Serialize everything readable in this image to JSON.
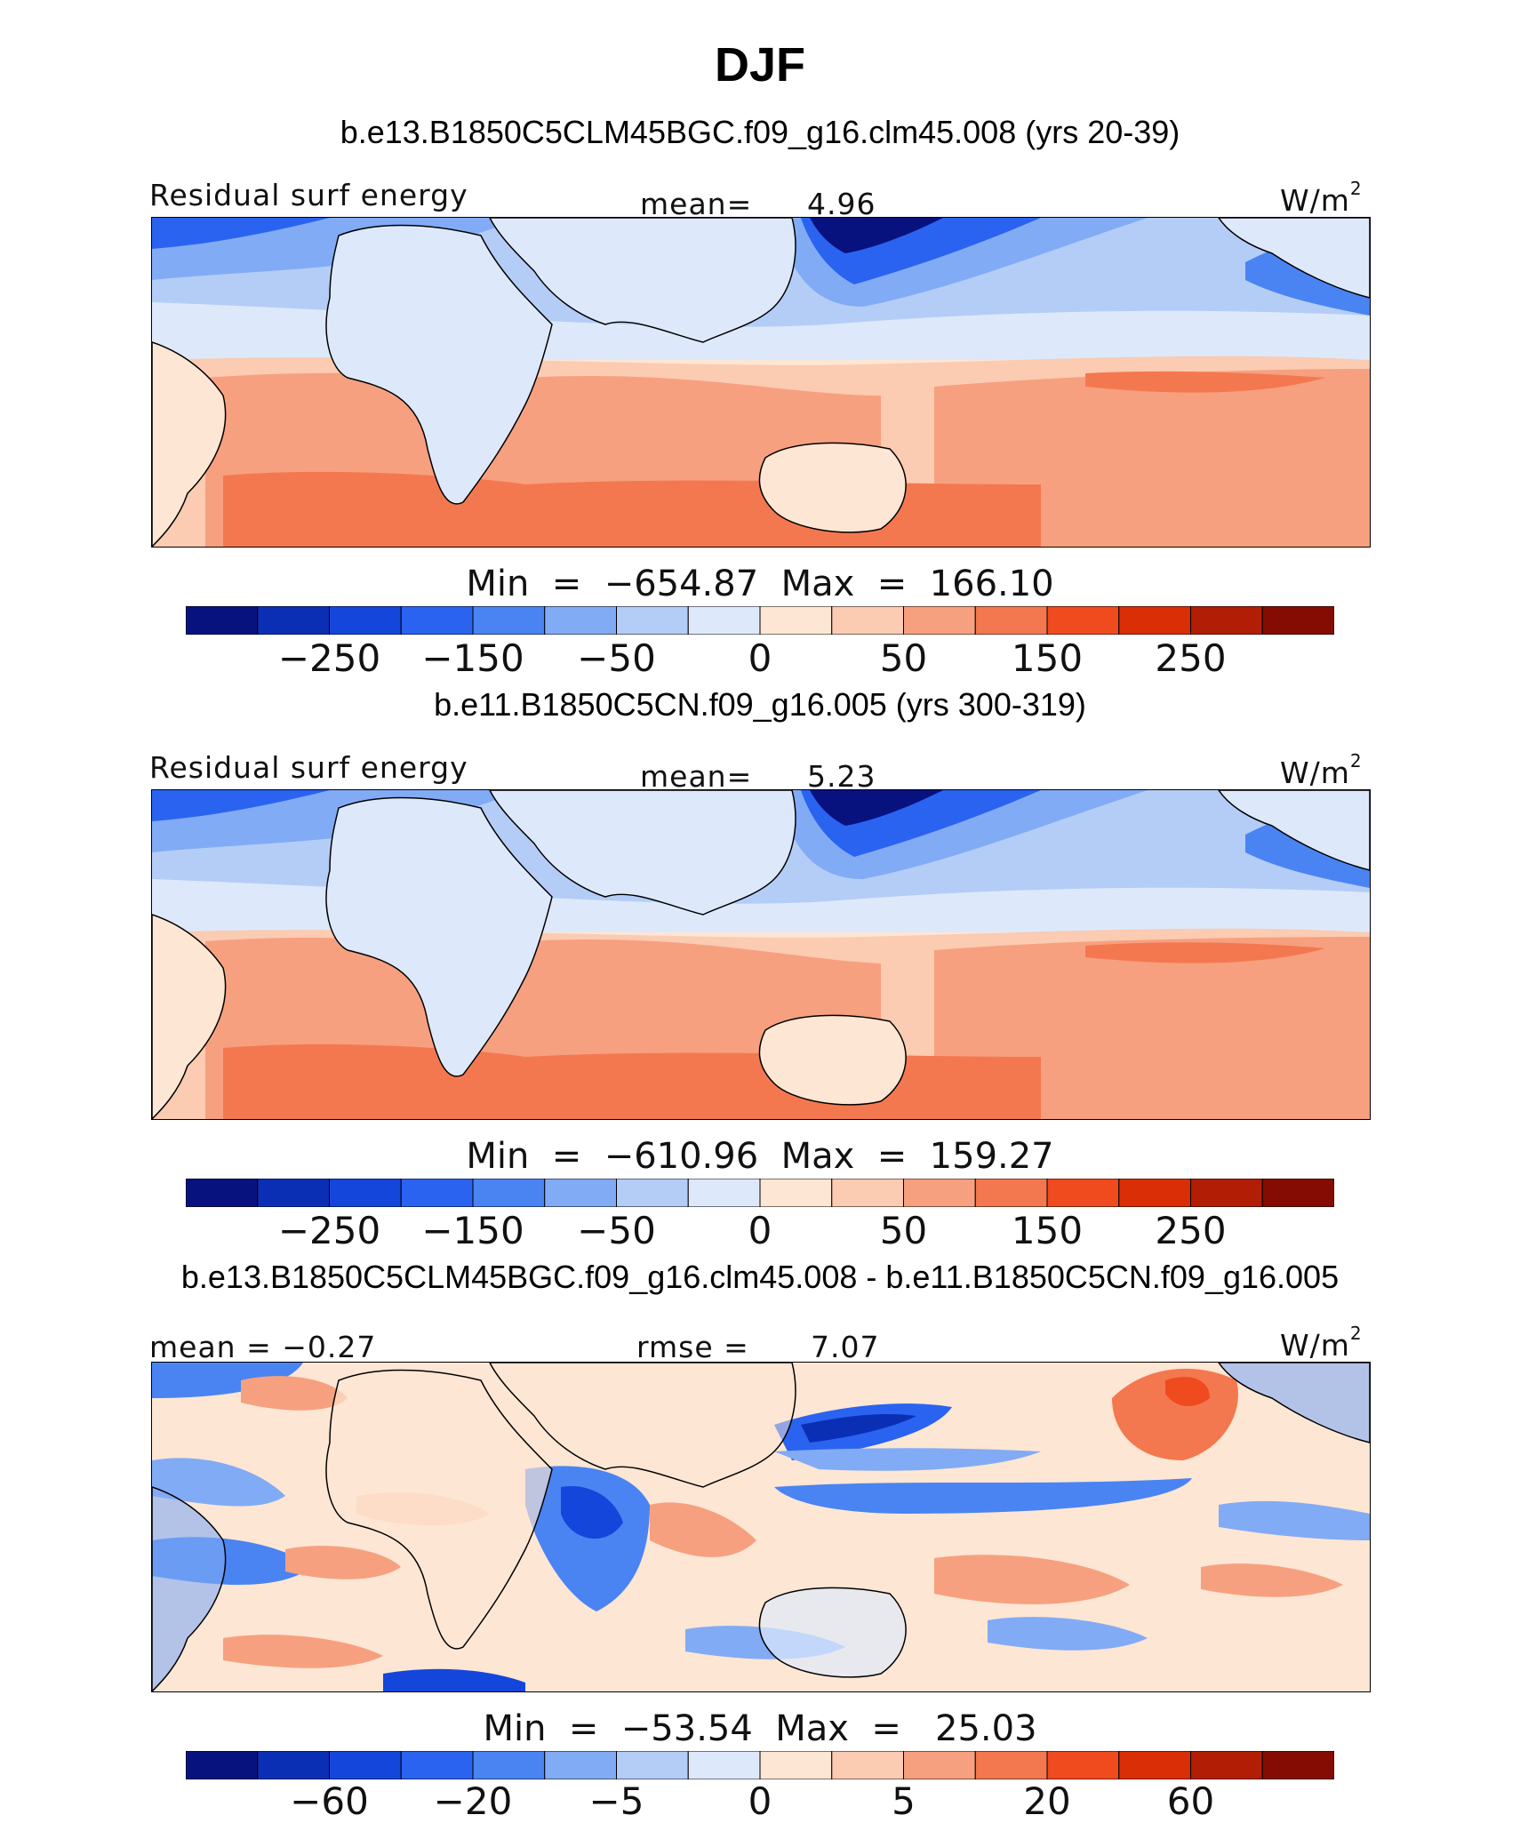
{
  "figure": {
    "title": "DJF",
    "units_label": "W/m",
    "units_exponent": "2",
    "panels": [
      {
        "case_title": "b.e13.B1850C5CLM45BGC.f09_g16.clm45.008 (yrs 20-39)",
        "left_label": "Residual surf energy",
        "center_label": "mean=",
        "center_value": "4.96",
        "min_max_text": "Min  =  −654.87  Max  =  166.10",
        "colorbar_ticks": [
          "−250",
          "−150",
          "−50",
          "0",
          "50",
          "150",
          "250"
        ]
      },
      {
        "case_title": "b.e11.B1850C5CN.f09_g16.005 (yrs 300-319)",
        "left_label": "Residual surf energy",
        "center_label": "mean=",
        "center_value": "5.23",
        "min_max_text": "Min  =  −610.96  Max  =  159.27",
        "colorbar_ticks": [
          "−250",
          "−150",
          "−50",
          "0",
          "50",
          "150",
          "250"
        ]
      },
      {
        "case_title": "b.e13.B1850C5CLM45BGC.f09_g16.clm45.008 - b.e11.B1850C5CN.f09_g16.005",
        "left_label": "mean  =   −0.27",
        "center_label": "rmse  =",
        "center_value": "7.07",
        "min_max_text": "Min  =  −53.54  Max  =   25.03",
        "colorbar_ticks": [
          "−60",
          "−20",
          "−5",
          "0",
          "5",
          "20",
          "60"
        ]
      }
    ],
    "colors": {
      "scale": [
        "#08127e",
        "#0a2fb5",
        "#1446dc",
        "#2a63f0",
        "#4a84f2",
        "#82abf5",
        "#b4cdf7",
        "#dde9fb",
        "#fde6d4",
        "#fbcbb2",
        "#f7a07f",
        "#f4784f",
        "#f04a1f",
        "#d92e06",
        "#b11e05",
        "#850c02"
      ]
    }
  }
}
